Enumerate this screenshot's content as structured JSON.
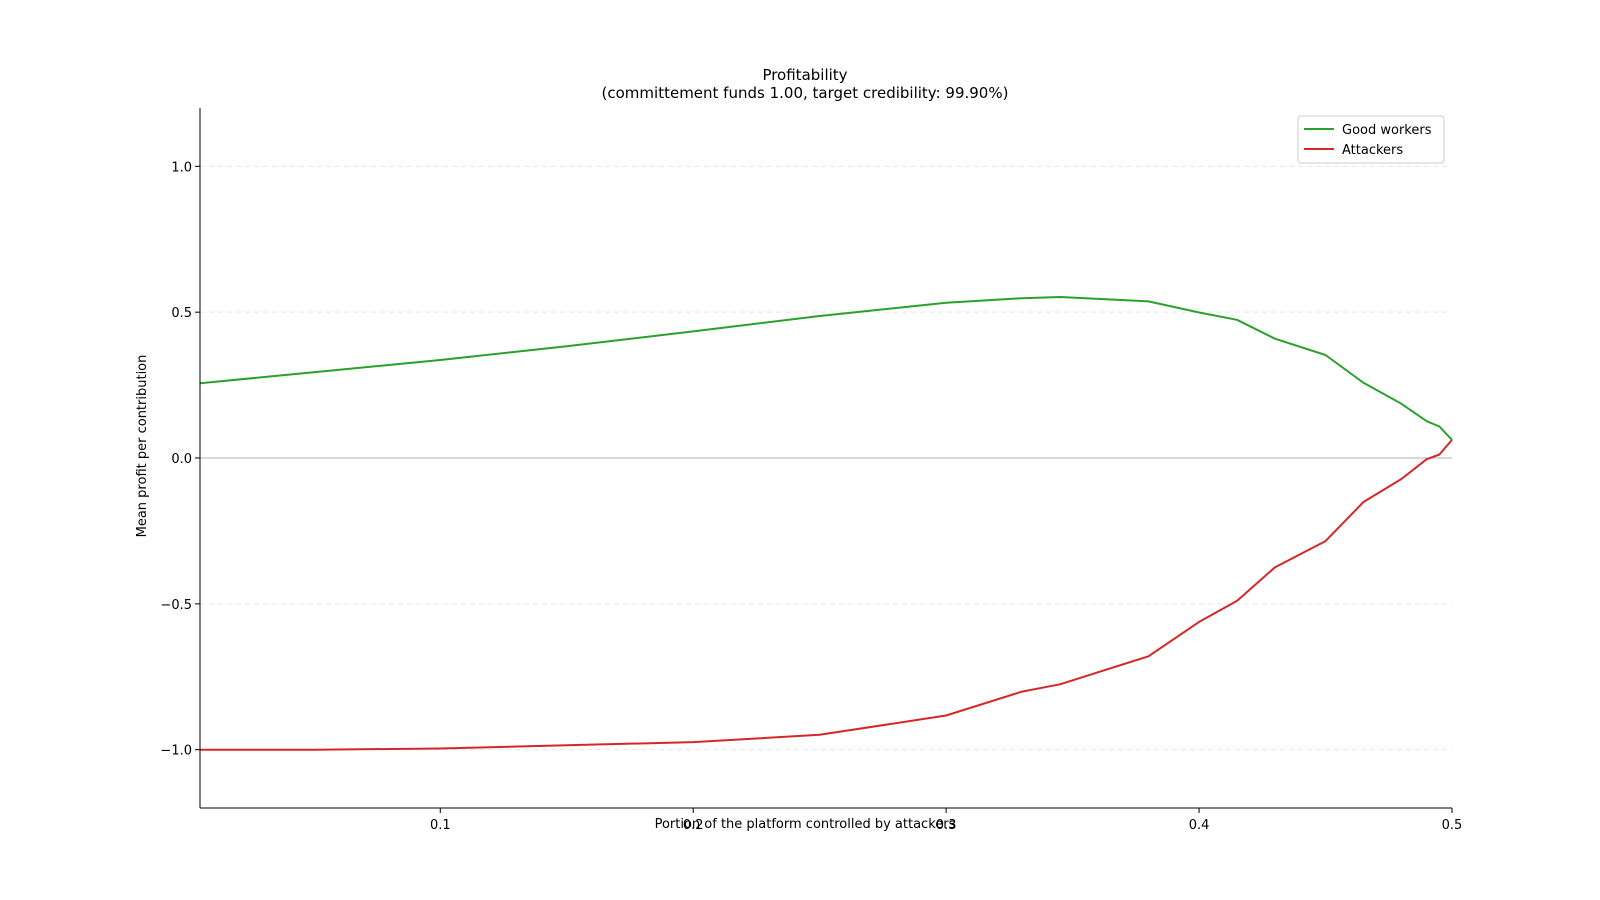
{
  "chart_data": {
    "type": "line",
    "title": "Profitability",
    "subtitle": "(committement funds 1.00, target credibility: 99.90%)",
    "xlabel": "Portion of the platform controlled by attackers",
    "ylabel": "Mean profit per contribution",
    "xlim": [
      0.005,
      0.5
    ],
    "ylim": [
      -1.2,
      1.2
    ],
    "xticks": [
      0.1,
      0.2,
      0.3,
      0.4,
      0.5
    ],
    "xtick_labels": [
      "0.1",
      "0.2",
      "0.3",
      "0.4",
      "0.5"
    ],
    "yticks": [
      1.0,
      0.5,
      0.0,
      -0.5,
      -1.0
    ],
    "ytick_labels": [
      "1.0",
      "0.5",
      "0.0",
      "−0.5",
      "−1.0"
    ],
    "grid": "horizontal dashed",
    "legend_position": "top-right",
    "x": [
      0.005,
      0.05,
      0.1,
      0.15,
      0.2,
      0.25,
      0.3,
      0.33,
      0.345,
      0.38,
      0.4,
      0.415,
      0.43,
      0.45,
      0.465,
      0.48,
      0.49,
      0.495,
      0.5
    ],
    "series": [
      {
        "name": "Good workers",
        "color": "#2ca02c",
        "values": [
          0.256,
          0.294,
          0.336,
          0.383,
          0.434,
          0.487,
          0.532,
          0.548,
          0.552,
          0.537,
          0.499,
          0.474,
          0.409,
          0.353,
          0.258,
          0.186,
          0.126,
          0.108,
          0.062
        ]
      },
      {
        "name": "Attackers",
        "color": "#d62728",
        "values": [
          -1.0,
          -1.0,
          -0.996,
          -0.985,
          -0.974,
          -0.949,
          -0.883,
          -0.801,
          -0.776,
          -0.68,
          -0.562,
          -0.49,
          -0.375,
          -0.285,
          -0.151,
          -0.072,
          -0.004,
          0.012,
          0.062
        ]
      }
    ]
  }
}
